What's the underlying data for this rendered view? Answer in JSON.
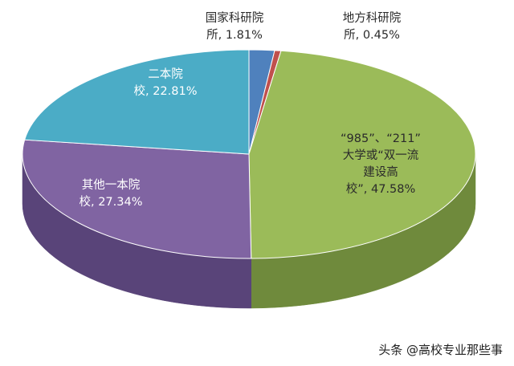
{
  "chart_data": {
    "type": "pie",
    "style": "3d",
    "slices": [
      {
        "label_lines": [
          "国家科研院",
          "所, 1.81%"
        ],
        "value": 1.81,
        "color": "#4f81bd",
        "side": "#3a6191"
      },
      {
        "label_lines": [
          "地方科研院",
          "所, 0.45%"
        ],
        "value": 0.45,
        "color": "#c0504d",
        "side": "#8f3a38"
      },
      {
        "label_lines": [
          "“985”、“211”",
          "大学或“双一流",
          "建设高",
          "校”, 47.58%"
        ],
        "value": 47.58,
        "color": "#9bbb59",
        "side": "#6f8a3c"
      },
      {
        "label_lines": [
          "其他一本院",
          "校, 27.34%"
        ],
        "value": 27.34,
        "color": "#8064a2",
        "side": "#594479"
      },
      {
        "label_lines": [
          "二本院",
          "校, 22.81%"
        ],
        "value": 22.81,
        "color": "#4bacc6",
        "side": "#337f93"
      }
    ]
  },
  "watermark": "头条 @高校专业那些事"
}
